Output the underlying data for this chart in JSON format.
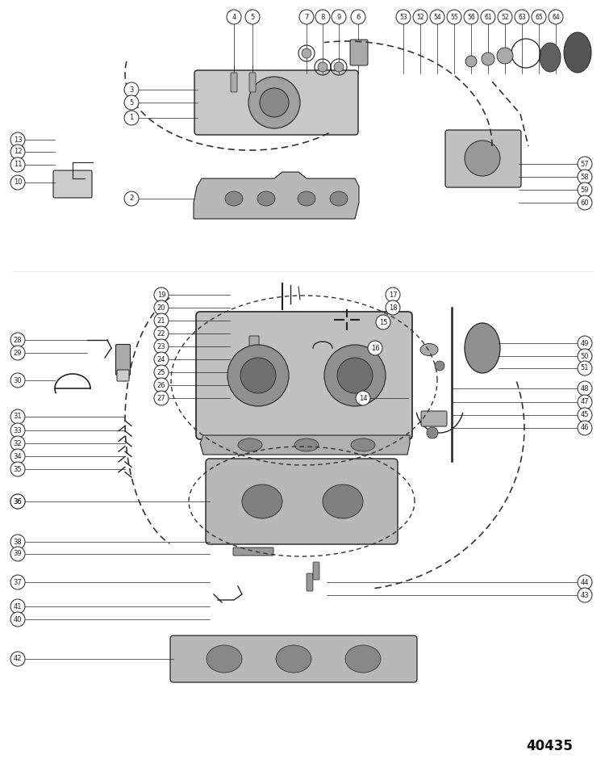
{
  "bg_color": "#ffffff",
  "line_color": "#222222",
  "footer_number": "40435",
  "figsize": [
    7.5,
    9.61
  ],
  "dpi": 100
}
